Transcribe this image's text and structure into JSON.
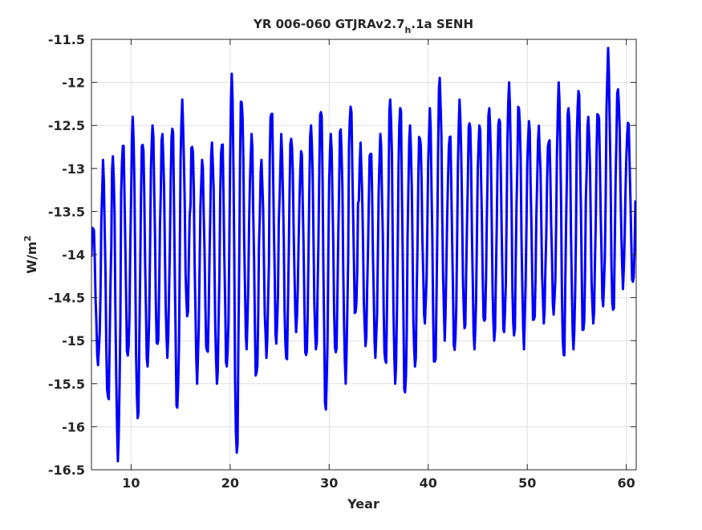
{
  "chart_data": {
    "type": "line",
    "title": {
      "prefix": "YR 006-060 GTJRAv2.7",
      "subscript": "h",
      "suffix": ".1a SENH"
    },
    "xlabel": "Year",
    "ylabel": {
      "base": "W/m",
      "superscript": "2"
    },
    "xlim": [
      6,
      61
    ],
    "ylim": [
      -16.5,
      -11.5
    ],
    "x_ticks": [
      10,
      20,
      30,
      40,
      50,
      60
    ],
    "y_ticks": [
      -16.5,
      -16,
      -15.5,
      -15,
      -14.5,
      -14,
      -13.5,
      -13,
      -12.5,
      -12,
      -11.5
    ],
    "x_tick_labels": [
      "10",
      "20",
      "30",
      "40",
      "50",
      "60"
    ],
    "y_tick_labels": [
      "-16.5",
      "-16",
      "-15.5",
      "-15",
      "-14.5",
      "-14",
      "-13.5",
      "-13",
      "-12.5",
      "-12",
      "-11.5"
    ],
    "grid": true,
    "line_color": "#0000ff",
    "series": [
      {
        "sampling": "monthly",
        "x_start": 6,
        "x_step": 0.08333,
        "cycle_extrema": [
          [
            -13.6,
            -15.3
          ],
          [
            -12.9,
            -15.8
          ],
          [
            -12.8,
            -16.4
          ],
          [
            -12.7,
            -15.2
          ],
          [
            -12.4,
            -15.9
          ],
          [
            -12.7,
            -15.3
          ],
          [
            -12.5,
            -15.1
          ],
          [
            -12.6,
            -15.2
          ],
          [
            -12.4,
            -15.9
          ],
          [
            -12.2,
            -14.8
          ],
          [
            -12.6,
            -15.5
          ],
          [
            -12.9,
            -15.2
          ],
          [
            -12.7,
            -15.5
          ],
          [
            -12.7,
            -15.3
          ],
          [
            -11.9,
            -16.3
          ],
          [
            -12.2,
            -15.1
          ],
          [
            -12.6,
            -15.5
          ],
          [
            -12.9,
            -15.2
          ],
          [
            -12.2,
            -15.1
          ],
          [
            -12.6,
            -15.3
          ],
          [
            -12.6,
            -14.9
          ],
          [
            -12.8,
            -15.2
          ],
          [
            -12.5,
            -15.1
          ],
          [
            -12.3,
            -15.8
          ],
          [
            -12.6,
            -15.2
          ],
          [
            -12.5,
            -15.5
          ],
          [
            -12.2,
            -14.8
          ],
          [
            -12.7,
            -15.1
          ],
          [
            -12.7,
            -15.2
          ],
          [
            -12.6,
            -15.3
          ],
          [
            -12.2,
            -15.5
          ],
          [
            -12.3,
            -15.6
          ],
          [
            -12.5,
            -15.3
          ],
          [
            -12.6,
            -14.8
          ],
          [
            -12.3,
            -15.4
          ],
          [
            -11.9,
            -15.0
          ],
          [
            -12.5,
            -15.2
          ],
          [
            -12.2,
            -14.9
          ],
          [
            -12.4,
            -15.1
          ],
          [
            -12.5,
            -14.8
          ],
          [
            -12.3,
            -15.0
          ],
          [
            -12.4,
            -14.9
          ],
          [
            -12.0,
            -15.0
          ],
          [
            -12.2,
            -15.1
          ],
          [
            -12.4,
            -14.9
          ],
          [
            -12.5,
            -14.8
          ],
          [
            -12.6,
            -14.7
          ],
          [
            -12.0,
            -15.2
          ],
          [
            -12.3,
            -15.1
          ],
          [
            -12.1,
            -14.9
          ],
          [
            -12.4,
            -14.8
          ],
          [
            -12.3,
            -14.6
          ],
          [
            -11.6,
            -14.8
          ],
          [
            -12.0,
            -14.4
          ],
          [
            -12.4,
            -14.4
          ]
        ]
      }
    ]
  }
}
